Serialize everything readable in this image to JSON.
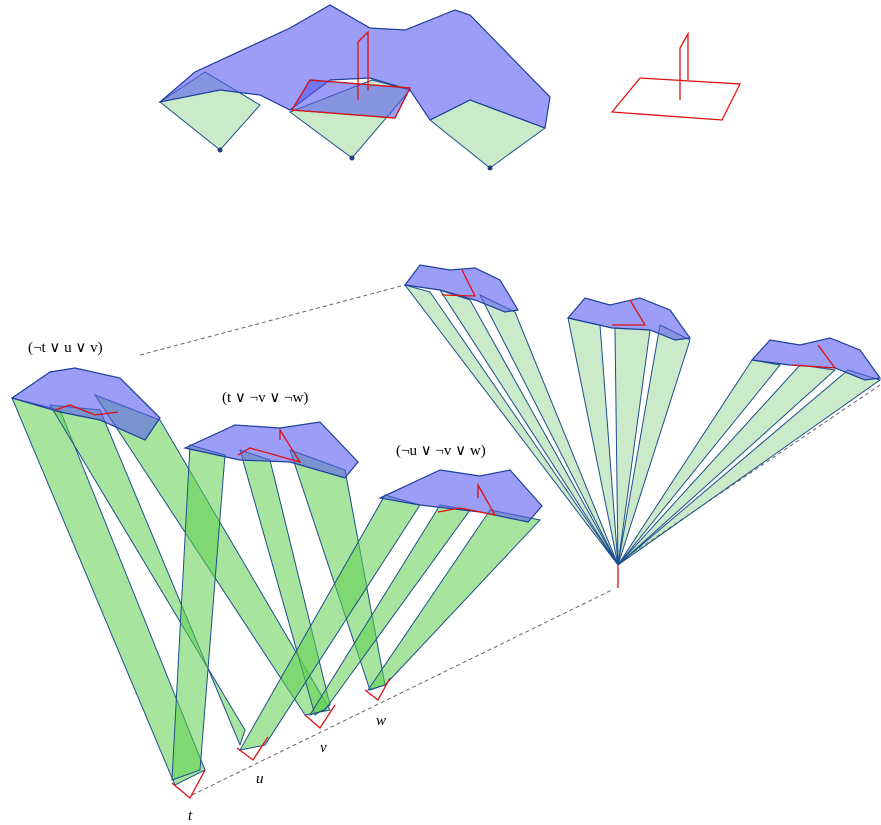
{
  "clauses": [
    {
      "label": "(¬t ∨ u ∨ v)"
    },
    {
      "label": "(t ∨ ¬v ∨ ¬w)"
    },
    {
      "label": "(¬u ∨ ¬v ∨ w)"
    }
  ],
  "variables": [
    "t",
    "u",
    "v",
    "w"
  ]
}
